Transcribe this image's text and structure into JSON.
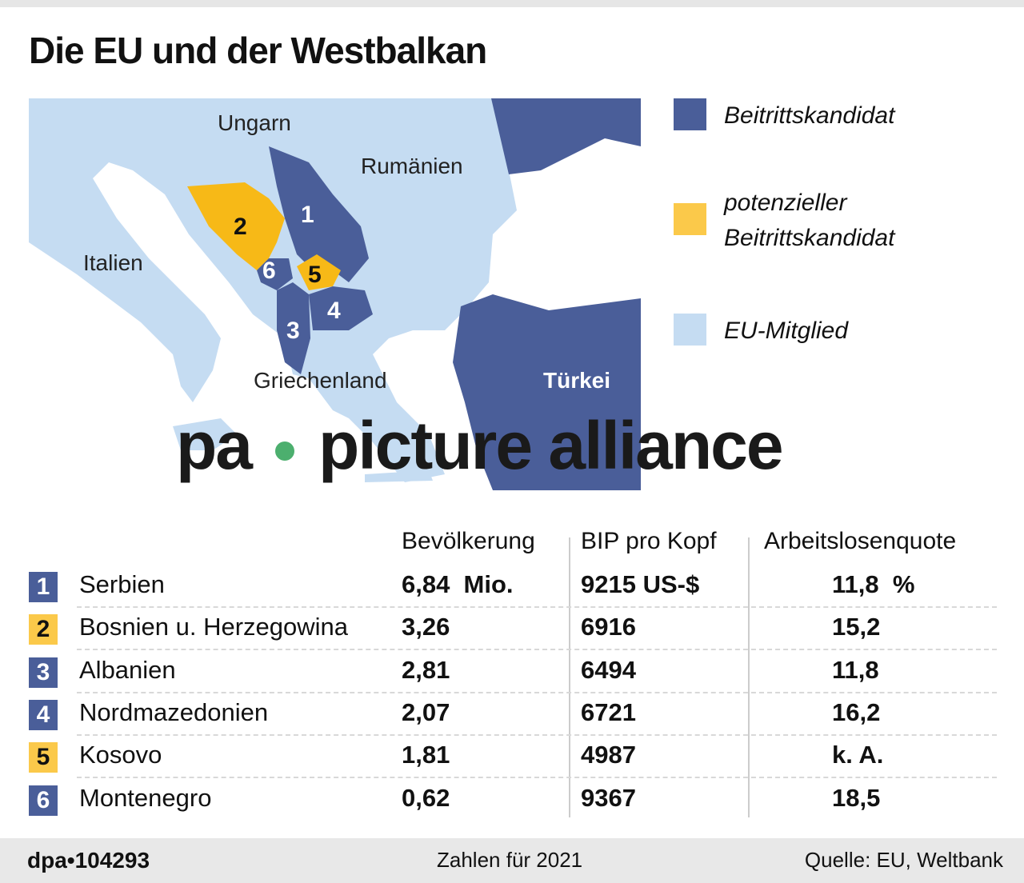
{
  "title": "Die EU und der Westbalkan",
  "colors": {
    "candidate": "#4a5e99",
    "potential": "#f7b917",
    "eu": "#c5dcf2",
    "badge_potential": "#fbc94a"
  },
  "map": {
    "labels": {
      "ungarn": "Ungarn",
      "rumaenien": "Rumänien",
      "italien": "Italien",
      "griechenland": "Griechenland",
      "tuerkei": "Türkei"
    },
    "numbers": [
      "1",
      "2",
      "3",
      "4",
      "5",
      "6"
    ]
  },
  "legend": [
    {
      "label": "Beitrittskandidat",
      "color": "#4a5e99"
    },
    {
      "label_line1": "potenzieller",
      "label_line2": "Beitrittskandidat",
      "color": "#fbc94a"
    },
    {
      "label": "EU-Mitglied",
      "color": "#c5dcf2"
    }
  ],
  "watermark": {
    "left": "pa",
    "right": "picture alliance"
  },
  "table": {
    "headers": [
      "Bevölkerung",
      "BIP pro Kopf",
      "Arbeitslosenquote"
    ],
    "rows": [
      {
        "num": "1",
        "country": "Serbien",
        "pop": "6,84  Mio.",
        "gdp": "9215 US-$",
        "unemp": "11,8  %",
        "status": "candidate"
      },
      {
        "num": "2",
        "country": "Bosnien u. Herzegowina",
        "pop": "3,26",
        "gdp": "6916",
        "unemp": "15,2",
        "status": "potential"
      },
      {
        "num": "3",
        "country": "Albanien",
        "pop": "2,81",
        "gdp": "6494",
        "unemp": "11,8",
        "status": "candidate"
      },
      {
        "num": "4",
        "country": "Nordmazedonien",
        "pop": "2,07",
        "gdp": "6721",
        "unemp": "16,2",
        "status": "candidate"
      },
      {
        "num": "5",
        "country": "Kosovo",
        "pop": "1,81",
        "gdp": "4987",
        "unemp": "k. A.",
        "status": "potential"
      },
      {
        "num": "6",
        "country": "Montenegro",
        "pop": "0,62",
        "gdp": "9367",
        "unemp": "18,5",
        "status": "candidate"
      }
    ]
  },
  "footer": {
    "id": "dpa•104293",
    "note": "Zahlen für 2021",
    "source": "Quelle: EU, Weltbank"
  }
}
